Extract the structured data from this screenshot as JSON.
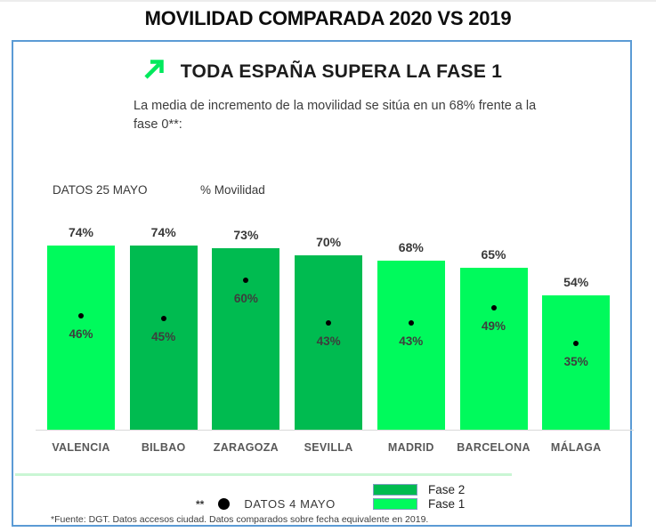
{
  "page": {
    "title": "MOVILIDAD COMPARADA 2020 VS 2019"
  },
  "panel": {
    "headline": "TODA ESPAÑA SUPERA LA FASE 1",
    "subtitle": "La media de incremento de la movilidad se sitúa en un 68% frente a la fase 0**:",
    "date_label": "DATOS 25 MAYO",
    "metric_label": "% Movilidad",
    "footnote": "*Fuente: DGT. Datos accesos ciudad. Datos comparados sobre fecha equivalente en 2019."
  },
  "legend": {
    "note_symbol": "**",
    "note_label": "DATOS 4 MAYO",
    "items": [
      {
        "label": "Fase 2",
        "color": "#00BB50"
      },
      {
        "label": "Fase 1",
        "color": "#00FA5C"
      }
    ]
  },
  "colors": {
    "fase1": "#00FA5C",
    "fase2": "#00BB50",
    "panel_border": "#5B9BD5",
    "arrow_green": "#00E95C",
    "underline_green": "#C9F6D4",
    "baseline_gray": "#D9D9D9"
  },
  "chart_data": {
    "type": "bar",
    "title": "% Movilidad",
    "categories": [
      "VALENCIA",
      "BILBAO",
      "ZARAGOZA",
      "SEVILLA",
      "MADRID",
      "BARCELONA",
      "MÁLAGA"
    ],
    "series": [
      {
        "name": "DATOS 25 MAYO",
        "values": [
          74,
          74,
          73,
          70,
          68,
          65,
          54
        ]
      },
      {
        "name": "DATOS 4 MAYO",
        "values": [
          46,
          45,
          60,
          43,
          43,
          49,
          35
        ]
      }
    ],
    "bar_phase": [
      "fase1",
      "fase2",
      "fase2",
      "fase2",
      "fase1",
      "fase1",
      "fase1"
    ],
    "ylim": [
      0,
      100
    ],
    "grid": false,
    "legend_position": "bottom-right",
    "value_labels": "bar value above each bar; dot value inside bar below black dot"
  }
}
